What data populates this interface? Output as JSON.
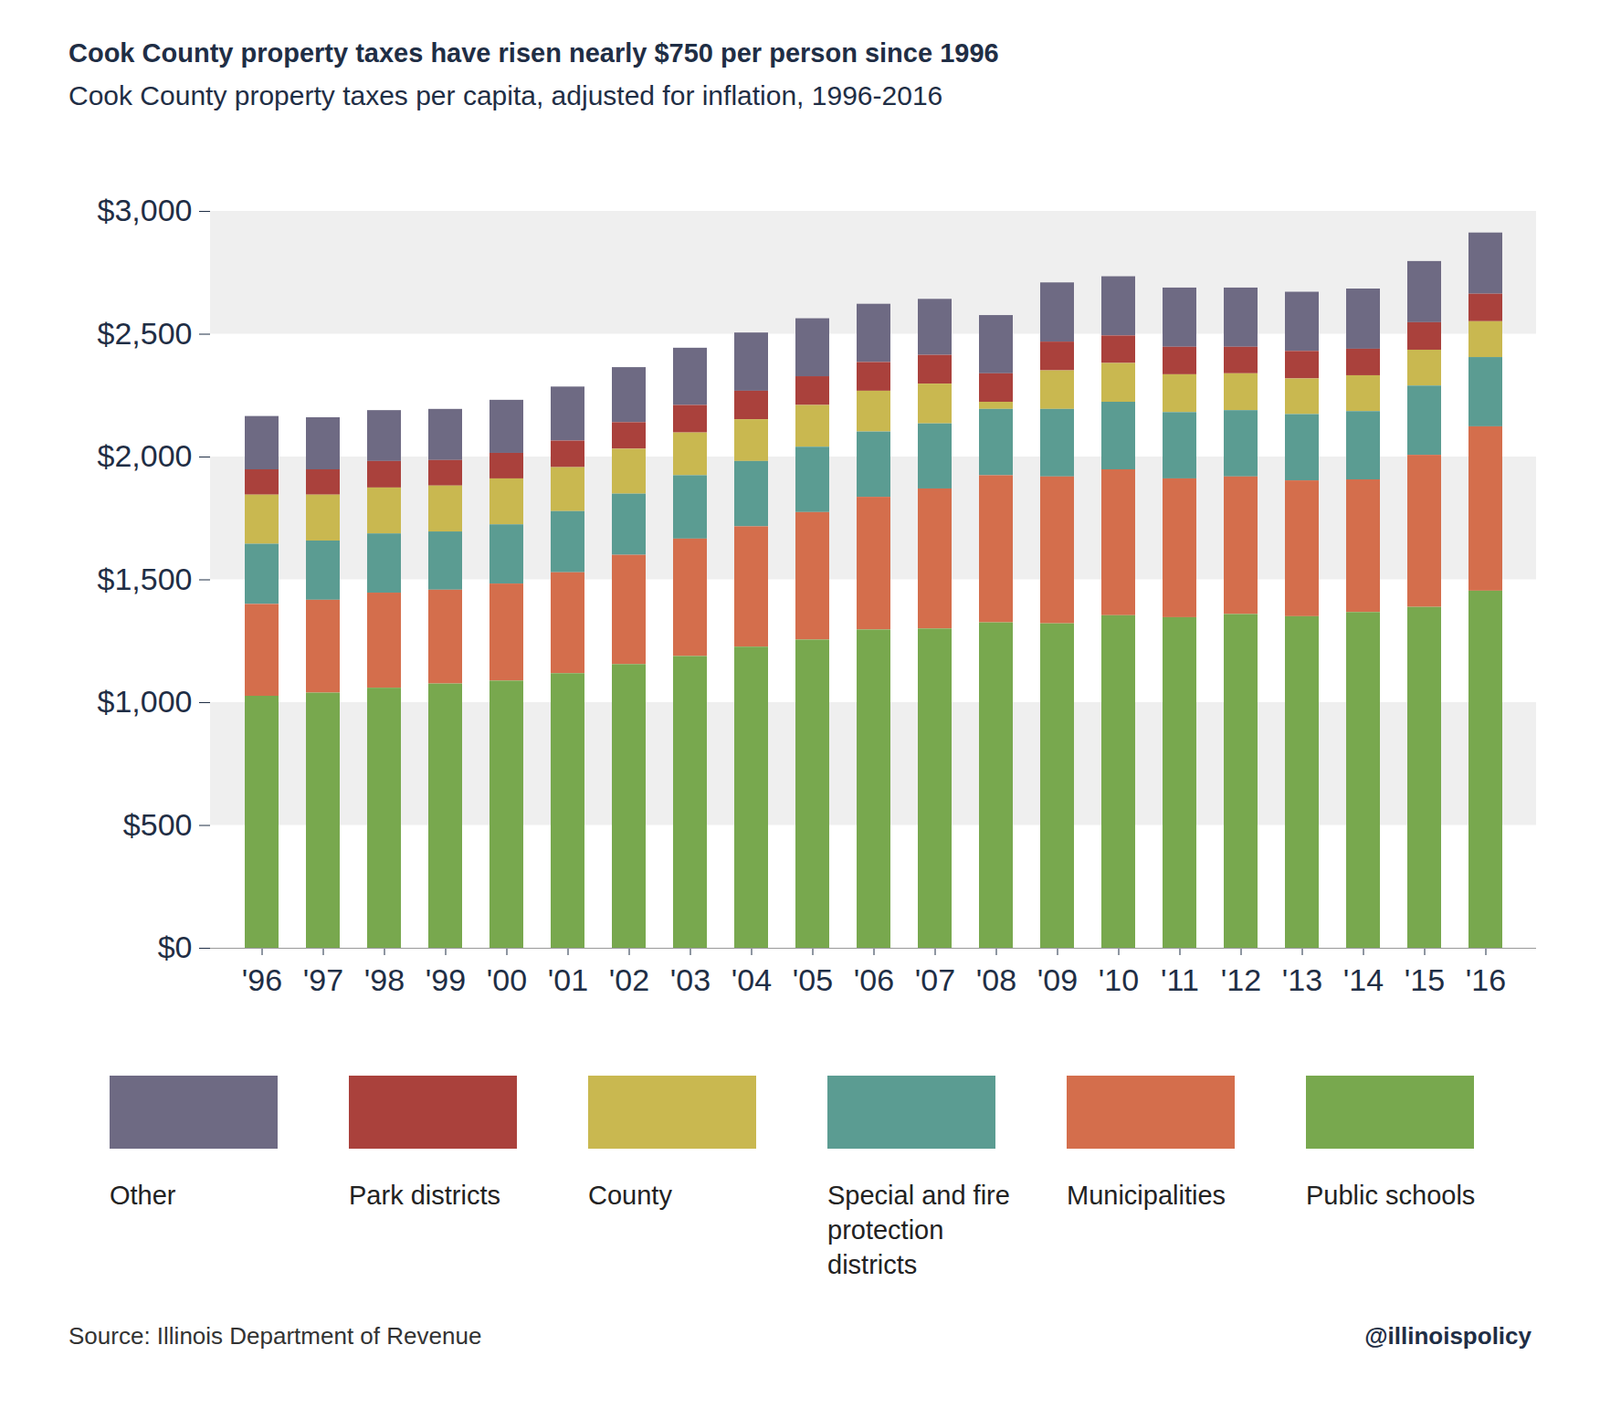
{
  "chart_data": {
    "type": "bar",
    "title": "Cook County property taxes have risen nearly $750 per person since 1996",
    "subtitle": "Cook County property taxes per capita, adjusted for inflation, 1996-2016",
    "source": "Source: Illinois Department of Revenue",
    "credit": "@illinoispolicy",
    "stacked": true,
    "legend": "bottom",
    "grid": true,
    "categories": [
      "'96",
      "'97",
      "'98",
      "'99",
      "'00",
      "'01",
      "'02",
      "'03",
      "'04",
      "'05",
      "'06",
      "'07",
      "'08",
      "'09",
      "'10",
      "'11",
      "'12",
      "'13",
      "'14",
      "'15",
      "'16"
    ],
    "series": [
      {
        "name": "Other",
        "color": "#6e6a83",
        "values": [
          217,
          212,
          207,
          208,
          216,
          220,
          224,
          233,
          237,
          236,
          237,
          228,
          237,
          241,
          241,
          241,
          241,
          241,
          245,
          249,
          249
        ]
      },
      {
        "name": "Park districts",
        "color": "#aa413c",
        "values": [
          103,
          103,
          108,
          104,
          104,
          108,
          108,
          112,
          116,
          117,
          117,
          117,
          116,
          117,
          112,
          112,
          108,
          112,
          108,
          112,
          112
        ]
      },
      {
        "name": "County",
        "color": "#c9b850",
        "values": [
          200,
          187,
          187,
          187,
          187,
          179,
          183,
          174,
          170,
          170,
          166,
          162,
          29,
          157,
          158,
          154,
          150,
          145,
          146,
          146,
          146
        ]
      },
      {
        "name": "Special and fire protection districts",
        "color": "#5b9c92",
        "values": [
          245,
          241,
          241,
          237,
          241,
          249,
          249,
          258,
          266,
          266,
          266,
          265,
          270,
          275,
          275,
          270,
          270,
          270,
          278,
          282,
          282
        ]
      },
      {
        "name": "Municipalities",
        "color": "#d46e4c",
        "values": [
          374,
          378,
          387,
          382,
          395,
          411,
          445,
          478,
          490,
          519,
          540,
          570,
          599,
          598,
          594,
          565,
          560,
          553,
          540,
          619,
          669
        ]
      },
      {
        "name": "Public schools",
        "color": "#78a84e",
        "values": [
          1026,
          1039,
          1059,
          1076,
          1088,
          1118,
          1155,
          1188,
          1226,
          1255,
          1296,
          1300,
          1325,
          1321,
          1354,
          1346,
          1359,
          1350,
          1367,
          1388,
          1454
        ]
      }
    ],
    "ylim": [
      0,
      3000
    ],
    "yticks": [
      {
        "value": 0,
        "label": "$0"
      },
      {
        "value": 500,
        "label": "$500"
      },
      {
        "value": 1000,
        "label": "$1,000"
      },
      {
        "value": 1500,
        "label": "$1,500"
      },
      {
        "value": 2000,
        "label": "$2,000"
      },
      {
        "value": 2500,
        "label": "$2,500"
      },
      {
        "value": 3000,
        "label": "$3,000"
      }
    ]
  }
}
